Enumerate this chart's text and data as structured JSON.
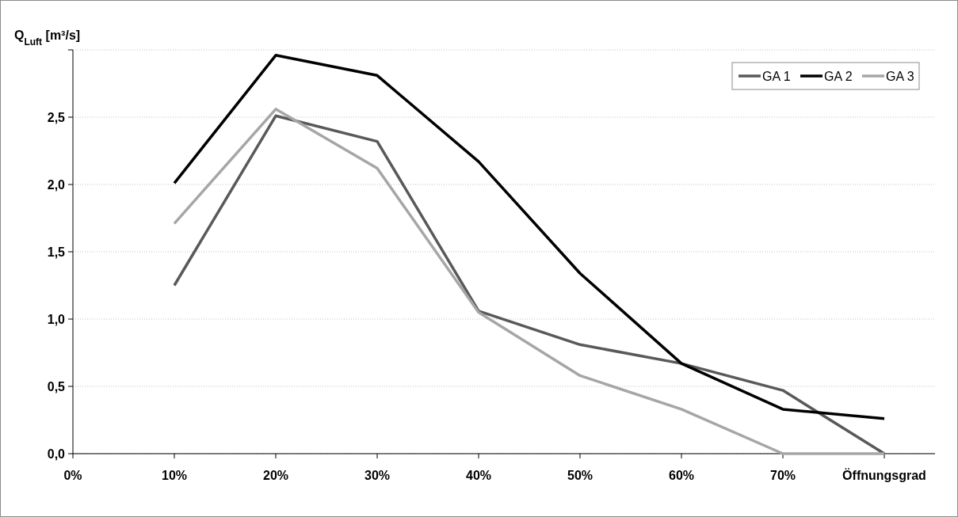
{
  "chart_data": {
    "type": "line",
    "ylabel": "Q$_{Luft}$ [m³/s]",
    "xlabel": "Öffnungsgrad",
    "x": [
      10,
      20,
      30,
      40,
      50,
      60,
      70,
      80
    ],
    "xlim": [
      0,
      85
    ],
    "xticks": [
      {
        "value": 0,
        "label": "0%"
      },
      {
        "value": 10,
        "label": "10%"
      },
      {
        "value": 20,
        "label": "20%"
      },
      {
        "value": 30,
        "label": "30%"
      },
      {
        "value": 40,
        "label": "40%"
      },
      {
        "value": 50,
        "label": "50%"
      },
      {
        "value": 60,
        "label": "60%"
      },
      {
        "value": 70,
        "label": "70%"
      },
      {
        "value": 80,
        "label": null
      }
    ],
    "ylim": [
      0,
      3
    ],
    "yticks": [
      {
        "value": 0,
        "label": "0,0"
      },
      {
        "value": 0.5,
        "label": "0,5"
      },
      {
        "value": 1,
        "label": "1,0"
      },
      {
        "value": 1.5,
        "label": "1,5"
      },
      {
        "value": 2,
        "label": "2,0"
      },
      {
        "value": 2.5,
        "label": "2,5"
      },
      {
        "value": 3,
        "label": null
      }
    ],
    "grid": "y",
    "legend": "top right",
    "line_style": "solid",
    "series": [
      {
        "name": "GA 1",
        "color": "#595959",
        "values": [
          1.25,
          2.51,
          2.32,
          1.06,
          0.81,
          0.67,
          0.47,
          0
        ]
      },
      {
        "name": "GA 2",
        "color": "#000000",
        "values": [
          2.01,
          2.96,
          2.81,
          2.17,
          1.34,
          0.67,
          0.33,
          0.26
        ]
      },
      {
        "name": "GA 3",
        "color": "#a6a6a6",
        "values": [
          1.71,
          2.56,
          2.12,
          1.05,
          0.58,
          0.33,
          0,
          0
        ]
      }
    ]
  }
}
